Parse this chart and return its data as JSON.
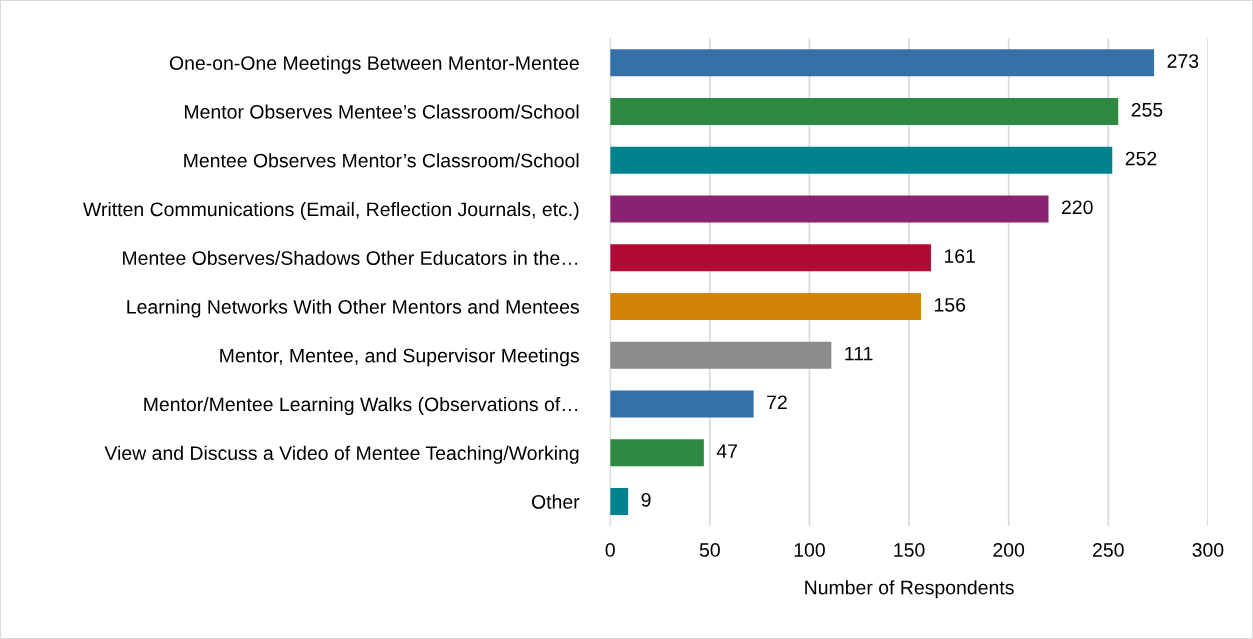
{
  "chart_data": {
    "type": "bar",
    "orientation": "horizontal",
    "xlabel": "Number of Respondents",
    "categories": [
      "One-on-One Meetings Between Mentor-Mentee",
      "Mentor Observes Mentee’s Classroom/School",
      "Mentee Observes Mentor’s Classroom/School",
      "Written Communications (Email, Reflection Journals, etc.)",
      "Mentee Observes/Shadows Other Educators in the…",
      "Learning Networks With Other Mentors and Mentees",
      "Mentor, Mentee, and Supervisor Meetings",
      "Mentor/Mentee Learning Walks (Observations of…",
      "View and Discuss a Video of Mentee Teaching/Working",
      "Other"
    ],
    "values": [
      273,
      255,
      252,
      220,
      161,
      156,
      111,
      72,
      47,
      9
    ],
    "colors": [
      "#3670a8",
      "#2e8a40",
      "#00838f",
      "#892270",
      "#b00a32",
      "#d4820a",
      "#8c8c8c",
      "#3670a8",
      "#2e8a40",
      "#00838f"
    ],
    "xlim": [
      0,
      300
    ],
    "xticks": [
      0,
      50,
      100,
      150,
      200,
      250,
      300
    ],
    "grid": "x",
    "data_labels": true
  }
}
